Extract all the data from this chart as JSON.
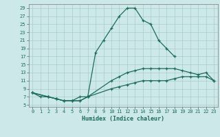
{
  "xlabel": "Humidex (Indice chaleur)",
  "background_color": "#cde8e8",
  "grid_color": "#a8cccc",
  "line_color": "#1a6b5a",
  "xlim": [
    -0.5,
    23.5
  ],
  "ylim": [
    4.5,
    30
  ],
  "yticks": [
    5,
    7,
    9,
    11,
    13,
    15,
    17,
    19,
    21,
    23,
    25,
    27,
    29
  ],
  "xticks": [
    0,
    1,
    2,
    3,
    4,
    5,
    6,
    7,
    8,
    9,
    10,
    11,
    12,
    13,
    14,
    15,
    16,
    17,
    18,
    19,
    20,
    21,
    22,
    23
  ],
  "line1_x": [
    0,
    1,
    2,
    3,
    4,
    5,
    6,
    7,
    8,
    9,
    10,
    11,
    12,
    13,
    14,
    15,
    16,
    17,
    18
  ],
  "line1_y": [
    8,
    7,
    7,
    6.5,
    6,
    6,
    7,
    7,
    18,
    21,
    24,
    27,
    29,
    29,
    26,
    25,
    21,
    19,
    17
  ],
  "line2_x": [
    0,
    2,
    3,
    4,
    5,
    6,
    7,
    10,
    11,
    12,
    13,
    14,
    15,
    16,
    17,
    18,
    19,
    20,
    21,
    22,
    23
  ],
  "line2_y": [
    8,
    7,
    6.5,
    6,
    6,
    6,
    7,
    11,
    12,
    13,
    13.5,
    14,
    14,
    14,
    14,
    14,
    13.5,
    13,
    12.5,
    13,
    11
  ],
  "line3_x": [
    0,
    2,
    3,
    4,
    5,
    6,
    7,
    10,
    11,
    12,
    13,
    14,
    15,
    16,
    17,
    18,
    19,
    20,
    21,
    22,
    23
  ],
  "line3_y": [
    8,
    7,
    6.5,
    6,
    6,
    6,
    7,
    9,
    9.5,
    10,
    10.5,
    11,
    11,
    11,
    11,
    11.5,
    12,
    12,
    12,
    12,
    11
  ]
}
